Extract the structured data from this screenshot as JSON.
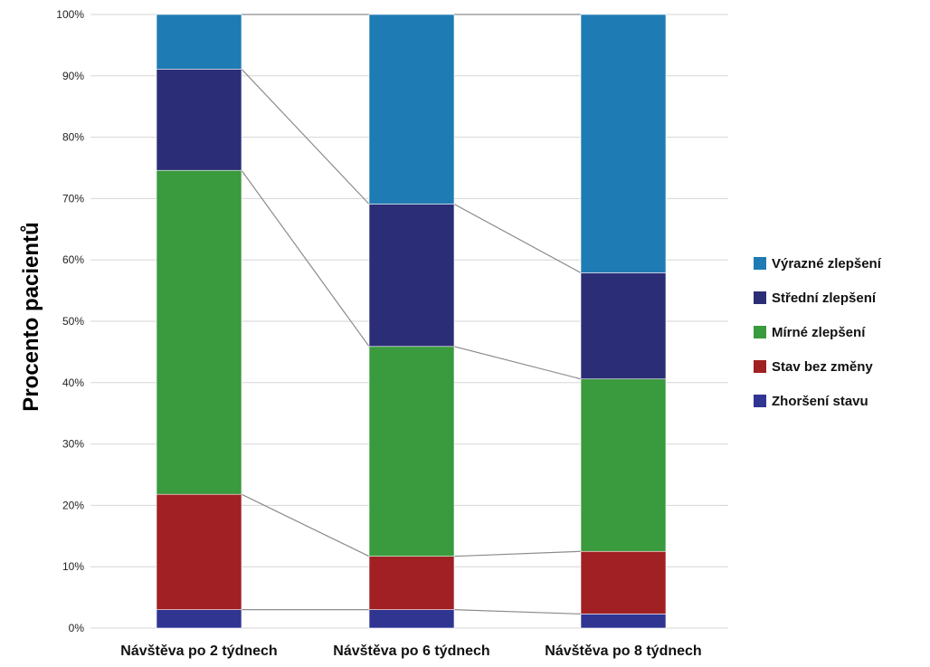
{
  "chart_data": {
    "type": "bar",
    "stacked": true,
    "categories": [
      "Návštěva po 2 týdnech",
      "Návštěva po 6 týdnech",
      "Návštěva po 8 týdnech"
    ],
    "series": [
      {
        "name": "Zhoršení stavu",
        "color": "#2f3591",
        "values": [
          3,
          3,
          2.3
        ]
      },
      {
        "name": "Stav bez změny",
        "color": "#a02024",
        "values": [
          18.8,
          8.7,
          10.2
        ]
      },
      {
        "name": "Mírné zlepšení",
        "color": "#3a9a3e",
        "values": [
          52.8,
          34.2,
          28.1
        ]
      },
      {
        "name": "Střední zlepšení",
        "color": "#2b2e76",
        "values": [
          16.5,
          23.2,
          17.3
        ]
      },
      {
        "name": "Výrazné zlepšení",
        "color": "#1f7bb3",
        "values": [
          8.9,
          30.9,
          42.1
        ]
      }
    ],
    "legend_order": [
      "Výrazné zlepšení",
      "Střední zlepšení",
      "Mírné zlepšení",
      "Stav bez změny",
      "Zhoršení stavu"
    ],
    "ylabel": "Procento pacientů",
    "xlabel": "",
    "ylim": [
      0,
      100
    ],
    "yticks": [
      "0%",
      "10%",
      "20%",
      "30%",
      "40%",
      "50%",
      "60%",
      "70%",
      "80%",
      "90%",
      "100%"
    ],
    "grid": true,
    "legend_position": "right",
    "connector_lines": true
  }
}
